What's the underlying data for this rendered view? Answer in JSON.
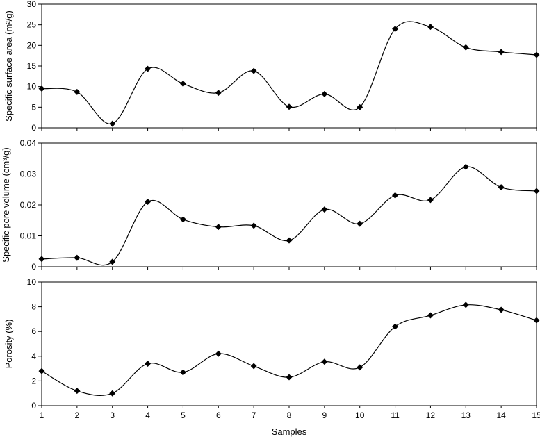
{
  "chart_data": [
    {
      "type": "line",
      "ylabel": "Specific surface area (m²/g)",
      "ylim": [
        0,
        30
      ],
      "yticks": [
        "0",
        "5",
        "10",
        "15",
        "20",
        "25",
        "30"
      ],
      "x": [
        1,
        2,
        3,
        4,
        5,
        6,
        7,
        8,
        9,
        10,
        11,
        12,
        13,
        14,
        15
      ],
      "series": [
        {
          "values": [
            9.5,
            8.7,
            1.0,
            14.3,
            10.7,
            8.5,
            13.8,
            5.1,
            8.2,
            5.0,
            24.0,
            24.5,
            19.5,
            18.4,
            17.7
          ]
        }
      ],
      "grid": false,
      "marker": "diamond"
    },
    {
      "type": "line",
      "ylabel": "Specific pore volume (cm³/g)",
      "ylim": [
        0,
        0.04
      ],
      "yticks": [
        "0",
        "0.01",
        "0.02",
        "0.03",
        "0.04"
      ],
      "x": [
        1,
        2,
        3,
        4,
        5,
        6,
        7,
        8,
        9,
        10,
        11,
        12,
        13,
        14,
        15
      ],
      "series": [
        {
          "values": [
            0.0025,
            0.0029,
            0.0016,
            0.021,
            0.0153,
            0.0129,
            0.0133,
            0.0085,
            0.0185,
            0.0139,
            0.0231,
            0.0216,
            0.0323,
            0.0257,
            0.0245
          ]
        }
      ],
      "grid": false,
      "marker": "diamond"
    },
    {
      "type": "line",
      "ylabel": "Porosity (%)",
      "xlabel": "Samples",
      "ylim": [
        0,
        10
      ],
      "yticks": [
        "0",
        "2",
        "4",
        "6",
        "8",
        "10"
      ],
      "x": [
        1,
        2,
        3,
        4,
        5,
        6,
        7,
        8,
        9,
        10,
        11,
        12,
        13,
        14,
        15
      ],
      "xticks": [
        "1",
        "2",
        "3",
        "4",
        "5",
        "6",
        "7",
        "8",
        "9",
        "10",
        "11",
        "12",
        "13",
        "14",
        "15"
      ],
      "series": [
        {
          "values": [
            2.8,
            1.2,
            1.0,
            3.4,
            2.7,
            4.2,
            3.2,
            2.3,
            3.55,
            3.1,
            6.4,
            7.3,
            8.15,
            7.75,
            6.9
          ]
        }
      ],
      "grid": false,
      "marker": "diamond"
    }
  ]
}
